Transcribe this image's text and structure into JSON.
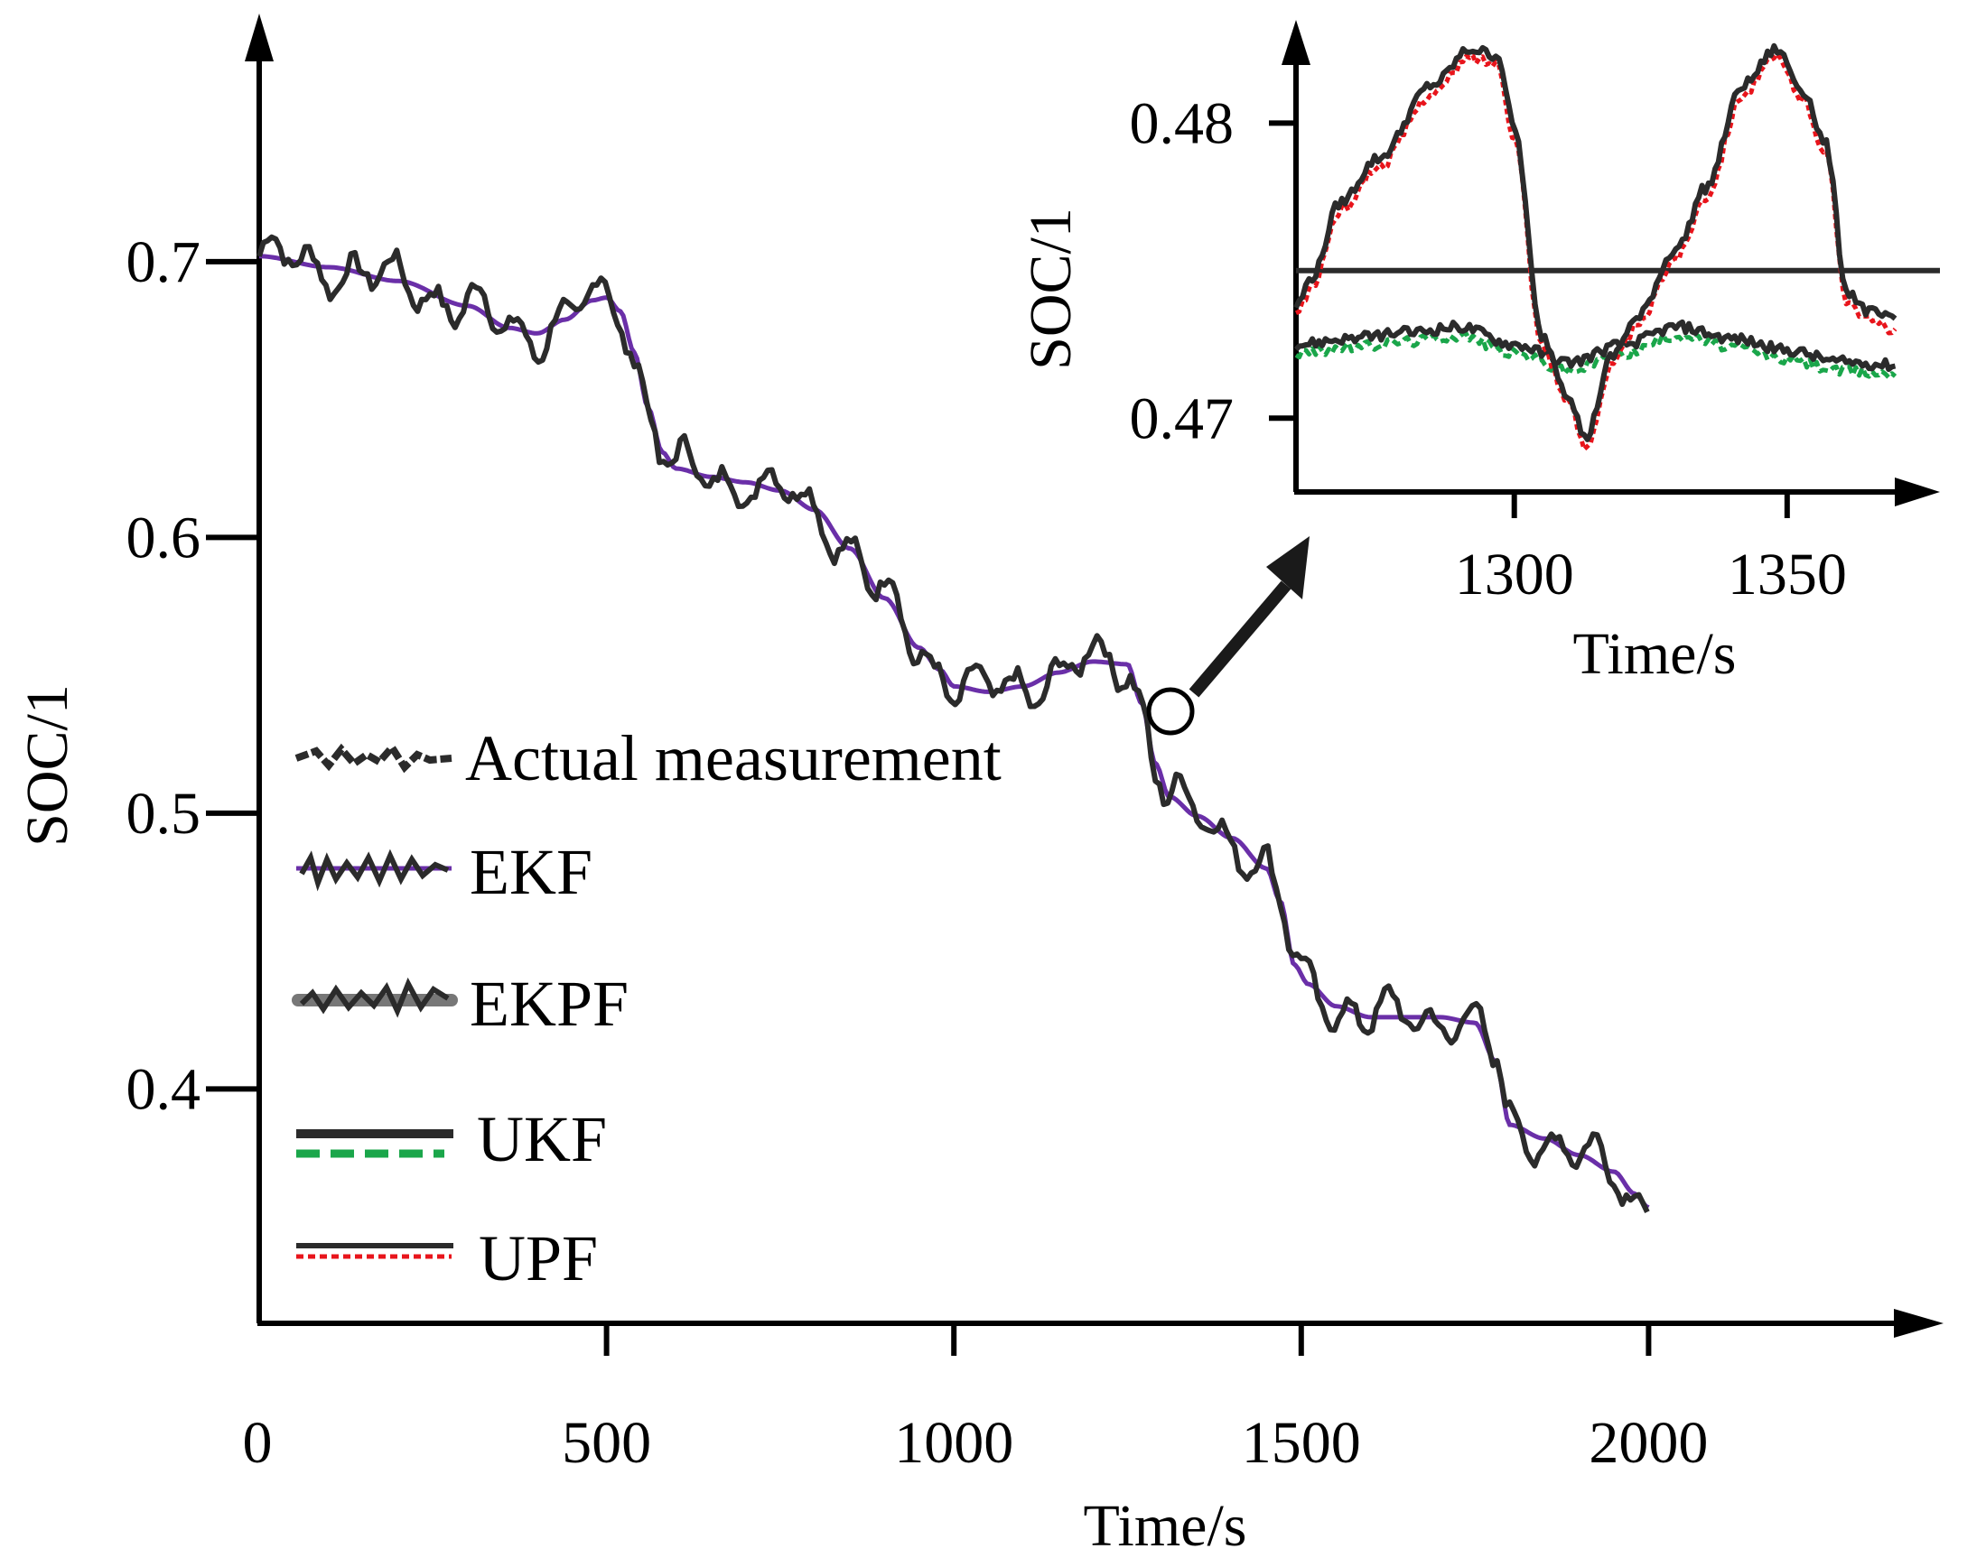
{
  "chart_data": [
    {
      "type": "line",
      "panel": "main",
      "xlabel": "Time/s",
      "ylabel": "SOC/1",
      "xlim": [
        0,
        2400
      ],
      "ylim": [
        0.315,
        0.79
      ],
      "xticks": [
        0,
        500,
        1000,
        1500,
        2000
      ],
      "xtick_labels": [
        "0",
        "500",
        "1000",
        "1500",
        "2000"
      ],
      "yticks": [
        0.4,
        0.5,
        0.6,
        0.7
      ],
      "ytick_labels": [
        "0.4",
        "0.5",
        "0.6",
        "0.7"
      ],
      "legend": [
        "Actual measurement",
        "EKF",
        "EKPF",
        "UKF",
        "UPF"
      ],
      "series": [
        {
          "name": "EKF",
          "color": "#6a2fa8",
          "x": [
            0,
            100,
            200,
            300,
            360,
            400,
            440,
            480,
            500,
            520,
            540,
            560,
            580,
            600,
            650,
            700,
            750,
            800,
            850,
            900,
            950,
            980,
            1000,
            1050,
            1100,
            1150,
            1200,
            1250,
            1270,
            1290,
            1310,
            1350,
            1400,
            1450,
            1470,
            1490,
            1510,
            1550,
            1600,
            1650,
            1700,
            1750,
            1780,
            1800,
            1850,
            1900,
            1950,
            1980,
            2000
          ],
          "values": [
            0.702,
            0.698,
            0.693,
            0.684,
            0.676,
            0.674,
            0.679,
            0.686,
            0.687,
            0.682,
            0.667,
            0.647,
            0.631,
            0.625,
            0.622,
            0.62,
            0.617,
            0.61,
            0.596,
            0.578,
            0.56,
            0.552,
            0.546,
            0.544,
            0.546,
            0.551,
            0.555,
            0.554,
            0.54,
            0.518,
            0.506,
            0.499,
            0.491,
            0.48,
            0.468,
            0.445,
            0.438,
            0.43,
            0.426,
            0.426,
            0.426,
            0.424,
            0.41,
            0.387,
            0.382,
            0.376,
            0.37,
            0.362,
            0.357
          ]
        },
        {
          "name": "Actual measurement",
          "color": "#2b2b2b",
          "amplitude": 0.006,
          "x": [
            0,
            100,
            200,
            300,
            360,
            400,
            440,
            480,
            500,
            520,
            540,
            560,
            580,
            600,
            650,
            700,
            750,
            800,
            850,
            900,
            950,
            980,
            1000,
            1050,
            1100,
            1150,
            1200,
            1250,
            1270,
            1290,
            1310,
            1350,
            1400,
            1450,
            1470,
            1490,
            1510,
            1550,
            1600,
            1650,
            1700,
            1750,
            1780,
            1800,
            1850,
            1900,
            1950,
            1980,
            2000
          ],
          "values": [
            0.702,
            0.698,
            0.693,
            0.684,
            0.676,
            0.674,
            0.679,
            0.686,
            0.687,
            0.682,
            0.667,
            0.647,
            0.631,
            0.625,
            0.622,
            0.62,
            0.617,
            0.61,
            0.596,
            0.578,
            0.56,
            0.552,
            0.546,
            0.544,
            0.546,
            0.551,
            0.555,
            0.554,
            0.54,
            0.518,
            0.506,
            0.499,
            0.491,
            0.48,
            0.468,
            0.445,
            0.438,
            0.43,
            0.426,
            0.426,
            0.426,
            0.424,
            0.41,
            0.387,
            0.382,
            0.376,
            0.37,
            0.362,
            0.357
          ]
        }
      ]
    },
    {
      "type": "line",
      "panel": "inset",
      "xlabel": "Time/s",
      "ylabel": "SOC/1",
      "xlim": [
        1260,
        1378
      ],
      "ylim": [
        0.4675,
        0.4835
      ],
      "xticks": [
        1300,
        1350
      ],
      "xtick_labels": [
        "1300",
        "1350"
      ],
      "yticks": [
        0.47,
        0.48
      ],
      "ytick_labels": [
        "0.47",
        "0.48"
      ],
      "series": [
        {
          "name": "Actual measurement",
          "color": "#2b2b2b",
          "x": [
            1260,
            1378
          ],
          "values": [
            0.475,
            0.475
          ]
        },
        {
          "name": "UKF",
          "color": "#1aa64a",
          "dashed": true,
          "x": [
            1260,
            1270,
            1280,
            1290,
            1300,
            1310,
            1320,
            1330,
            1340,
            1350,
            1360,
            1370
          ],
          "values": [
            0.4722,
            0.4724,
            0.4726,
            0.4728,
            0.4722,
            0.4716,
            0.4722,
            0.4728,
            0.4724,
            0.472,
            0.4716,
            0.4715
          ]
        },
        {
          "name": "UKF",
          "color": "#2b2b2b",
          "x": [
            1260,
            1270,
            1280,
            1290,
            1300,
            1310,
            1320,
            1330,
            1340,
            1350,
            1360,
            1370
          ],
          "values": [
            0.4725,
            0.4727,
            0.4729,
            0.4731,
            0.4725,
            0.4719,
            0.4725,
            0.4731,
            0.4727,
            0.4723,
            0.4719,
            0.4718
          ]
        },
        {
          "name": "UPF",
          "color": "#e8141b",
          "dashed": true,
          "x": [
            1260,
            1263,
            1268,
            1275,
            1285,
            1292,
            1297,
            1300,
            1305,
            1310,
            1313,
            1318,
            1322,
            1330,
            1335,
            1342,
            1348,
            1353,
            1357,
            1361,
            1365,
            1370
          ],
          "values": [
            0.4735,
            0.4745,
            0.477,
            0.4785,
            0.481,
            0.4822,
            0.482,
            0.4795,
            0.4725,
            0.4705,
            0.469,
            0.4718,
            0.473,
            0.4755,
            0.4775,
            0.481,
            0.4822,
            0.4808,
            0.479,
            0.474,
            0.4733,
            0.473
          ]
        },
        {
          "name": "UPF",
          "color": "#2b2b2b",
          "x": [
            1260,
            1263,
            1268,
            1275,
            1285,
            1292,
            1297,
            1300,
            1305,
            1310,
            1313,
            1318,
            1322,
            1330,
            1335,
            1342,
            1348,
            1353,
            1357,
            1361,
            1365,
            1370
          ],
          "values": [
            0.4738,
            0.4748,
            0.4773,
            0.4788,
            0.4813,
            0.4825,
            0.4823,
            0.4798,
            0.4728,
            0.4708,
            0.4693,
            0.4721,
            0.4733,
            0.4758,
            0.4778,
            0.4813,
            0.4825,
            0.4811,
            0.4793,
            0.4743,
            0.4736,
            0.4733
          ]
        }
      ]
    }
  ]
}
